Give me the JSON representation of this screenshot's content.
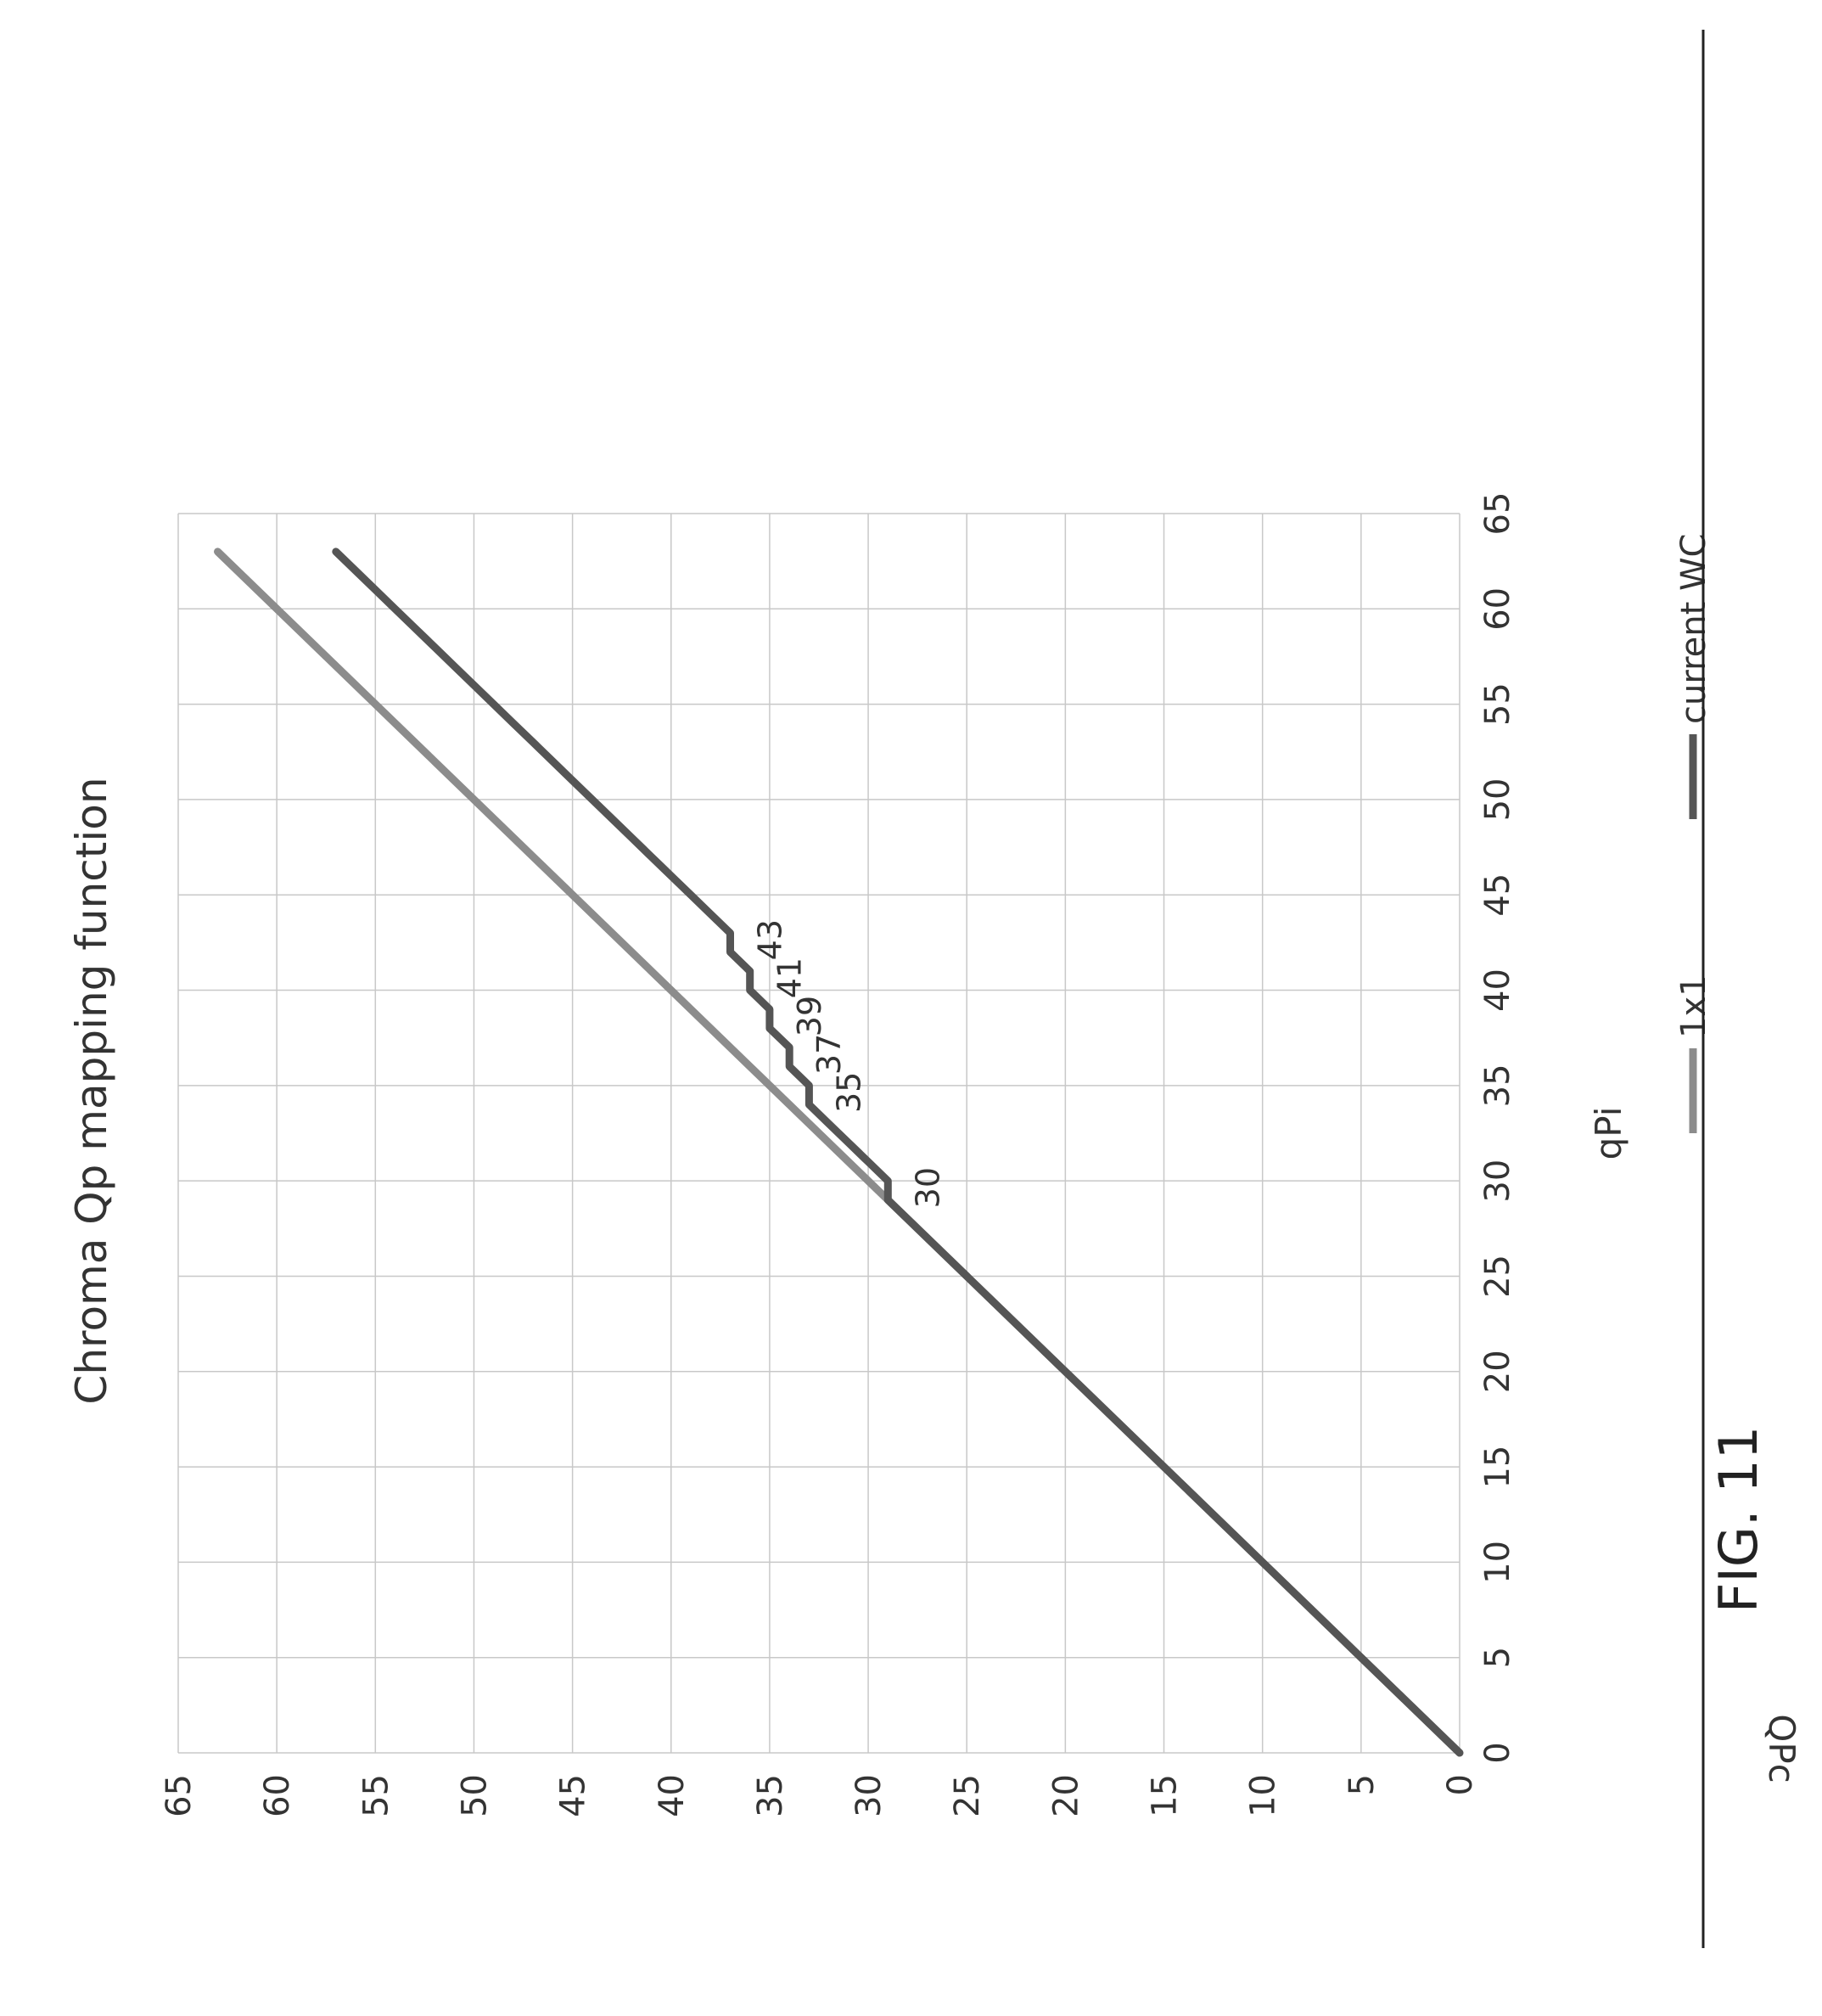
{
  "chart_data": {
    "type": "line",
    "title": "Chroma Qp mapping function",
    "xlabel": "qPi",
    "ylabel": "QPc",
    "xlim": [
      0,
      65
    ],
    "ylim": [
      0,
      65
    ],
    "xticks": [
      0,
      5,
      10,
      15,
      20,
      25,
      30,
      35,
      40,
      45,
      50,
      55,
      60,
      65
    ],
    "yticks": [
      0,
      5,
      10,
      15,
      20,
      25,
      30,
      35,
      40,
      45,
      50,
      55,
      60,
      65
    ],
    "grid": true,
    "legend_position": "bottom",
    "series": [
      {
        "name": "1x1",
        "color": "#8c8c8c",
        "x": [
          0,
          63
        ],
        "y": [
          0,
          63
        ]
      },
      {
        "name": "current WC",
        "color": "#555555",
        "x": [
          0,
          29,
          30,
          31,
          32,
          33,
          34,
          35,
          36,
          37,
          38,
          39,
          40,
          41,
          42,
          43,
          44,
          45,
          46,
          47,
          48,
          49,
          50,
          51,
          52,
          53,
          54,
          55,
          56,
          57,
          58,
          59,
          60,
          61,
          62,
          63
        ],
        "y": [
          0,
          29,
          29,
          30,
          31,
          32,
          33,
          33,
          34,
          34,
          35,
          35,
          36,
          36,
          37,
          37,
          38,
          39,
          40,
          41,
          42,
          43,
          44,
          45,
          46,
          47,
          48,
          49,
          50,
          51,
          52,
          53,
          54,
          55,
          56,
          57
        ]
      }
    ],
    "annotations": [
      {
        "text": "30",
        "x": 30,
        "y": 29
      },
      {
        "text": "35",
        "x": 35,
        "y": 33
      },
      {
        "text": "37",
        "x": 37,
        "y": 34
      },
      {
        "text": "39",
        "x": 39,
        "y": 35
      },
      {
        "text": "41",
        "x": 41,
        "y": 36
      },
      {
        "text": "43",
        "x": 43,
        "y": 37
      }
    ]
  },
  "figure_label": "FIG. 11"
}
